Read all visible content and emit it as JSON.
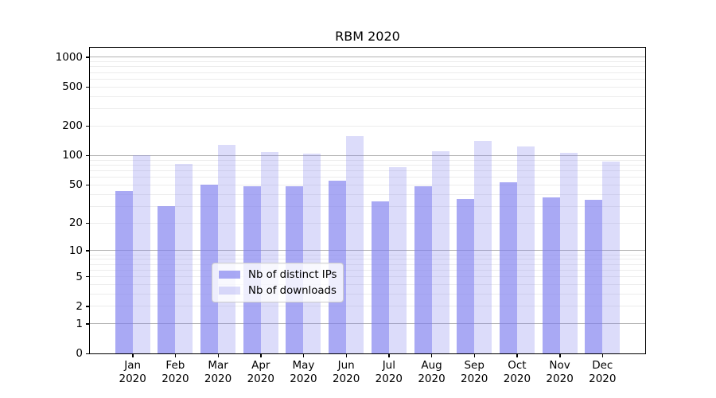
{
  "title": "RBM 2020",
  "legend": {
    "items": [
      {
        "label": "Nb of distinct IPs",
        "series": "distinct_ips"
      },
      {
        "label": "Nb of downloads",
        "series": "downloads"
      }
    ]
  },
  "y_axis": {
    "tick_labels": [
      "0",
      "1",
      "2",
      "5",
      "10",
      "20",
      "50",
      "100",
      "200",
      "500",
      "1000"
    ]
  },
  "x_axis": {
    "tick_labels": [
      {
        "month": "Jan",
        "year": "2020"
      },
      {
        "month": "Feb",
        "year": "2020"
      },
      {
        "month": "Mar",
        "year": "2020"
      },
      {
        "month": "Apr",
        "year": "2020"
      },
      {
        "month": "May",
        "year": "2020"
      },
      {
        "month": "Jun",
        "year": "2020"
      },
      {
        "month": "Jul",
        "year": "2020"
      },
      {
        "month": "Aug",
        "year": "2020"
      },
      {
        "month": "Sep",
        "year": "2020"
      },
      {
        "month": "Oct",
        "year": "2020"
      },
      {
        "month": "Nov",
        "year": "2020"
      },
      {
        "month": "Dec",
        "year": "2020"
      }
    ]
  },
  "colors": {
    "bar_distinct_ips": "rgba(124,124,238,0.66)",
    "bar_downloads": "rgba(124,124,238,0.27)",
    "grid_decade": "#b2b2b2",
    "grid_minor": "#ececec",
    "axis": "#000000",
    "legend_border": "#cccccc",
    "text": "#000000"
  },
  "chart_data": {
    "type": "bar",
    "title": "RBM 2020",
    "categories": [
      "Jan 2020",
      "Feb 2020",
      "Mar 2020",
      "Apr 2020",
      "May 2020",
      "Jun 2020",
      "Jul 2020",
      "Aug 2020",
      "Sep 2020",
      "Oct 2020",
      "Nov 2020",
      "Dec 2020"
    ],
    "series": [
      {
        "name": "Nb of distinct IPs",
        "values": [
          43,
          30,
          50,
          48,
          48,
          55,
          34,
          48,
          36,
          53,
          37,
          35
        ]
      },
      {
        "name": "Nb of downloads",
        "values": [
          100,
          82,
          129,
          109,
          104,
          158,
          76,
          110,
          140,
          125,
          106,
          87
        ]
      }
    ],
    "xlabel": "",
    "ylabel": "",
    "y_scale": "log10(value+1)",
    "y_ticks": [
      0,
      1,
      2,
      5,
      10,
      20,
      50,
      100,
      200,
      500,
      1000
    ],
    "y_minor_ticks": [
      3,
      4,
      6,
      7,
      8,
      9,
      30,
      40,
      60,
      70,
      80,
      90,
      300,
      400,
      600,
      700,
      800,
      900
    ],
    "ylim": [
      0,
      1250
    ],
    "grid": true,
    "legend_position": "lower center"
  }
}
